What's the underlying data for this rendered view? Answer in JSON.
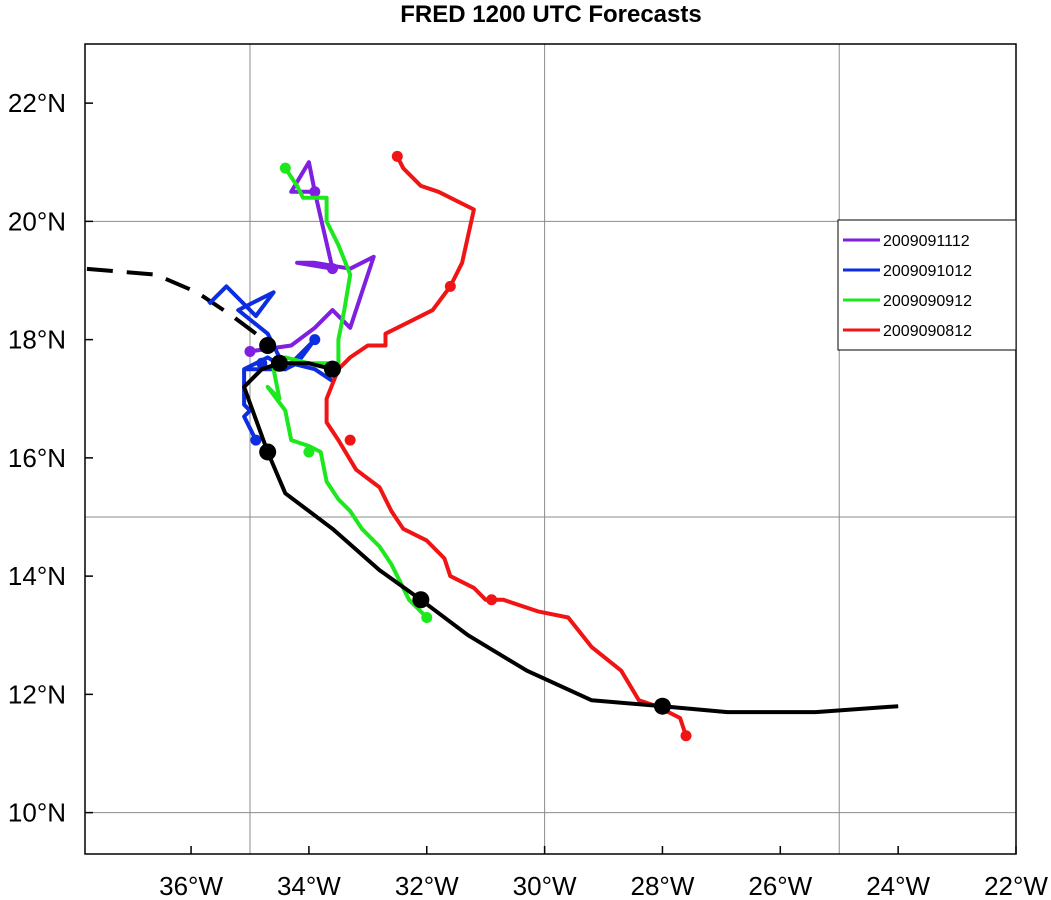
{
  "chart_data": {
    "type": "line",
    "title": "FRED 1200 UTC Forecasts",
    "xlabel": "",
    "ylabel": "",
    "xlim": [
      -37.8,
      -22
    ],
    "ylim": [
      9.3,
      23
    ],
    "grid": true,
    "legend_position": "right",
    "x_ticks": [
      {
        "value": -36,
        "label": "36°W"
      },
      {
        "value": -34,
        "label": "34°W"
      },
      {
        "value": -32,
        "label": "32°W"
      },
      {
        "value": -30,
        "label": "30°W"
      },
      {
        "value": -28,
        "label": "28°W"
      },
      {
        "value": -26,
        "label": "26°W"
      },
      {
        "value": -24,
        "label": "24°W"
      },
      {
        "value": -22,
        "label": "22°W"
      }
    ],
    "y_ticks": [
      {
        "value": 10,
        "label": "10°N"
      },
      {
        "value": 12,
        "label": "12°N"
      },
      {
        "value": 14,
        "label": "14°N"
      },
      {
        "value": 16,
        "label": "16°N"
      },
      {
        "value": 18,
        "label": "18°N"
      },
      {
        "value": 20,
        "label": "20°N"
      },
      {
        "value": 22,
        "label": "22°N"
      }
    ],
    "grid_x": [
      -35,
      -30,
      -25
    ],
    "grid_y": [
      10,
      15,
      20
    ],
    "best_track": {
      "color": "#000000",
      "points": [
        [
          -24.0,
          11.8
        ],
        [
          -25.4,
          11.7
        ],
        [
          -26.9,
          11.7
        ],
        [
          -28.0,
          11.8
        ],
        [
          -29.2,
          11.9
        ],
        [
          -30.3,
          12.4
        ],
        [
          -31.3,
          13.0
        ],
        [
          -32.1,
          13.6
        ],
        [
          -32.8,
          14.1
        ],
        [
          -33.6,
          14.8
        ],
        [
          -34.4,
          15.4
        ],
        [
          -34.7,
          16.1
        ],
        [
          -35.1,
          17.2
        ],
        [
          -34.8,
          17.5
        ],
        [
          -34.5,
          17.6
        ],
        [
          -34.0,
          17.6
        ],
        [
          -33.6,
          17.5
        ]
      ],
      "dots": [
        [
          -28.0,
          11.8
        ],
        [
          -32.1,
          13.6
        ],
        [
          -34.7,
          16.1
        ],
        [
          -34.5,
          17.6
        ],
        [
          -33.6,
          17.5
        ],
        [
          -34.7,
          17.9
        ]
      ],
      "dashed": [
        [
          -34.9,
          18.1
        ],
        [
          -35.3,
          18.4
        ],
        [
          -35.9,
          18.8
        ],
        [
          -36.6,
          19.1
        ],
        [
          -37.8,
          19.2
        ]
      ]
    },
    "series": [
      {
        "name": "2009091112",
        "color": "#7f1fe0",
        "points": [
          [
            -35.0,
            17.8
          ],
          [
            -34.3,
            17.9
          ],
          [
            -33.9,
            18.2
          ],
          [
            -33.6,
            18.5
          ],
          [
            -33.3,
            18.2
          ],
          [
            -32.9,
            19.4
          ],
          [
            -33.3,
            19.2
          ],
          [
            -33.9,
            19.3
          ],
          [
            -34.2,
            19.3
          ],
          [
            -33.6,
            19.2
          ],
          [
            -33.9,
            20.5
          ],
          [
            -34.3,
            20.5
          ],
          [
            -34.0,
            21.0
          ],
          [
            -33.9,
            20.5
          ]
        ],
        "dots": [
          [
            -35.0,
            17.8
          ],
          [
            -33.6,
            19.2
          ],
          [
            -33.9,
            20.5
          ]
        ]
      },
      {
        "name": "2009091012",
        "color": "#0d2ee0",
        "points": [
          [
            -33.6,
            17.3
          ],
          [
            -33.9,
            17.5
          ],
          [
            -34.3,
            17.6
          ],
          [
            -34.0,
            17.9
          ],
          [
            -33.9,
            18.0
          ],
          [
            -34.2,
            17.6
          ],
          [
            -34.4,
            17.5
          ],
          [
            -34.7,
            17.7
          ],
          [
            -34.9,
            17.6
          ],
          [
            -35.1,
            17.5
          ],
          [
            -35.1,
            17.2
          ],
          [
            -35.1,
            16.9
          ],
          [
            -35.0,
            16.8
          ],
          [
            -35.1,
            16.7
          ],
          [
            -35.0,
            16.5
          ],
          [
            -34.9,
            16.3
          ]
        ],
        "dots": [
          [
            -34.9,
            16.3
          ],
          [
            -33.9,
            18.0
          ],
          [
            -34.8,
            17.6
          ]
        ],
        "head": [
          [
            -35.1,
            17.5
          ],
          [
            -34.4,
            17.5
          ],
          [
            -34.7,
            18.1
          ],
          [
            -35.2,
            18.5
          ],
          [
            -34.6,
            18.8
          ],
          [
            -34.9,
            18.4
          ],
          [
            -35.4,
            18.9
          ],
          [
            -35.7,
            18.6
          ]
        ]
      },
      {
        "name": "2009090912",
        "color": "#1de81d",
        "points": [
          [
            -32.0,
            13.3
          ],
          [
            -32.3,
            13.6
          ],
          [
            -32.6,
            14.2
          ],
          [
            -32.8,
            14.5
          ],
          [
            -33.1,
            14.8
          ],
          [
            -33.3,
            15.1
          ],
          [
            -33.5,
            15.3
          ],
          [
            -33.7,
            15.6
          ],
          [
            -33.8,
            16.1
          ],
          [
            -34.0,
            16.2
          ],
          [
            -34.3,
            16.3
          ],
          [
            -34.4,
            16.8
          ],
          [
            -34.7,
            17.2
          ],
          [
            -34.5,
            17.0
          ],
          [
            -34.6,
            17.5
          ],
          [
            -34.4,
            17.7
          ],
          [
            -34.0,
            17.6
          ],
          [
            -33.5,
            17.6
          ],
          [
            -33.5,
            18.0
          ],
          [
            -33.4,
            18.5
          ],
          [
            -33.3,
            19.1
          ],
          [
            -33.5,
            19.6
          ],
          [
            -33.7,
            20.0
          ],
          [
            -33.7,
            20.4
          ],
          [
            -34.1,
            20.4
          ],
          [
            -34.2,
            20.6
          ],
          [
            -34.4,
            20.9
          ]
        ],
        "dots": [
          [
            -32.0,
            13.3
          ],
          [
            -34.0,
            16.1
          ],
          [
            -34.4,
            20.9
          ]
        ]
      },
      {
        "name": "2009090812",
        "color": "#f01414",
        "points": [
          [
            -27.6,
            11.3
          ],
          [
            -27.7,
            11.6
          ],
          [
            -28.1,
            11.8
          ],
          [
            -28.4,
            11.9
          ],
          [
            -28.7,
            12.4
          ],
          [
            -29.2,
            12.8
          ],
          [
            -29.6,
            13.3
          ],
          [
            -30.1,
            13.4
          ],
          [
            -30.7,
            13.6
          ],
          [
            -31.0,
            13.6
          ],
          [
            -31.2,
            13.8
          ],
          [
            -31.6,
            14.0
          ],
          [
            -31.7,
            14.3
          ],
          [
            -32.0,
            14.6
          ],
          [
            -32.4,
            14.8
          ],
          [
            -32.6,
            15.1
          ],
          [
            -32.8,
            15.5
          ],
          [
            -33.2,
            15.8
          ],
          [
            -33.5,
            16.3
          ],
          [
            -33.7,
            16.6
          ],
          [
            -33.7,
            17.0
          ],
          [
            -33.5,
            17.5
          ],
          [
            -33.3,
            17.7
          ],
          [
            -33.0,
            17.9
          ],
          [
            -32.7,
            17.9
          ],
          [
            -32.7,
            18.1
          ],
          [
            -32.3,
            18.3
          ],
          [
            -31.9,
            18.5
          ],
          [
            -31.6,
            18.9
          ],
          [
            -31.5,
            19.1
          ],
          [
            -31.4,
            19.3
          ],
          [
            -31.2,
            20.2
          ],
          [
            -31.8,
            20.5
          ],
          [
            -32.1,
            20.6
          ],
          [
            -32.4,
            20.9
          ],
          [
            -32.5,
            21.1
          ]
        ],
        "dots": [
          [
            -27.6,
            11.3
          ],
          [
            -28.0,
            11.8
          ],
          [
            -30.9,
            13.6
          ],
          [
            -33.3,
            16.3
          ],
          [
            -31.6,
            18.9
          ],
          [
            -32.5,
            21.1
          ]
        ]
      }
    ]
  }
}
